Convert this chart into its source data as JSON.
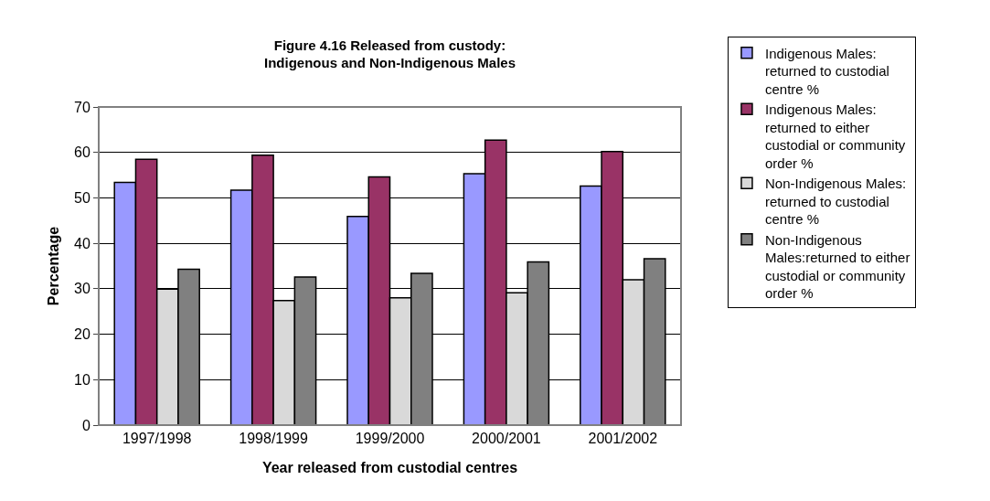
{
  "chart_data": {
    "type": "bar",
    "title": "Figure 4.16 Released from custody: Indigenous and Non-Indigenous Males",
    "xlabel": "Year released from custodial centres",
    "ylabel": "Percentage",
    "categories": [
      "1997/1998",
      "1998/1999",
      "1999/2000",
      "2000/2001",
      "2001/2002"
    ],
    "series": [
      {
        "name": "Indigenous Males: returned to custodial centre %",
        "color": "#9999ff",
        "values": [
          53.4,
          51.7,
          45.9,
          55.3,
          52.6
        ]
      },
      {
        "name": "Indigenous Males: returned to either custodial or community order %",
        "color": "#993366",
        "values": [
          58.5,
          59.4,
          54.6,
          62.7,
          60.2
        ]
      },
      {
        "name": "Non-Indigenous Males: returned to custodial centre %",
        "color": "#d9d9d9",
        "values": [
          29.9,
          27.4,
          28.0,
          29.1,
          32.0
        ]
      },
      {
        "name": "Non-Indigenous Males:returned to either custodial or community order %",
        "color": "#808080",
        "values": [
          34.3,
          32.6,
          33.4,
          35.9,
          36.6
        ]
      }
    ],
    "ylim": [
      0,
      70
    ],
    "yticks": [
      0,
      10,
      20,
      30,
      40,
      50,
      60,
      70
    ],
    "grid": "y",
    "legend": "right"
  }
}
